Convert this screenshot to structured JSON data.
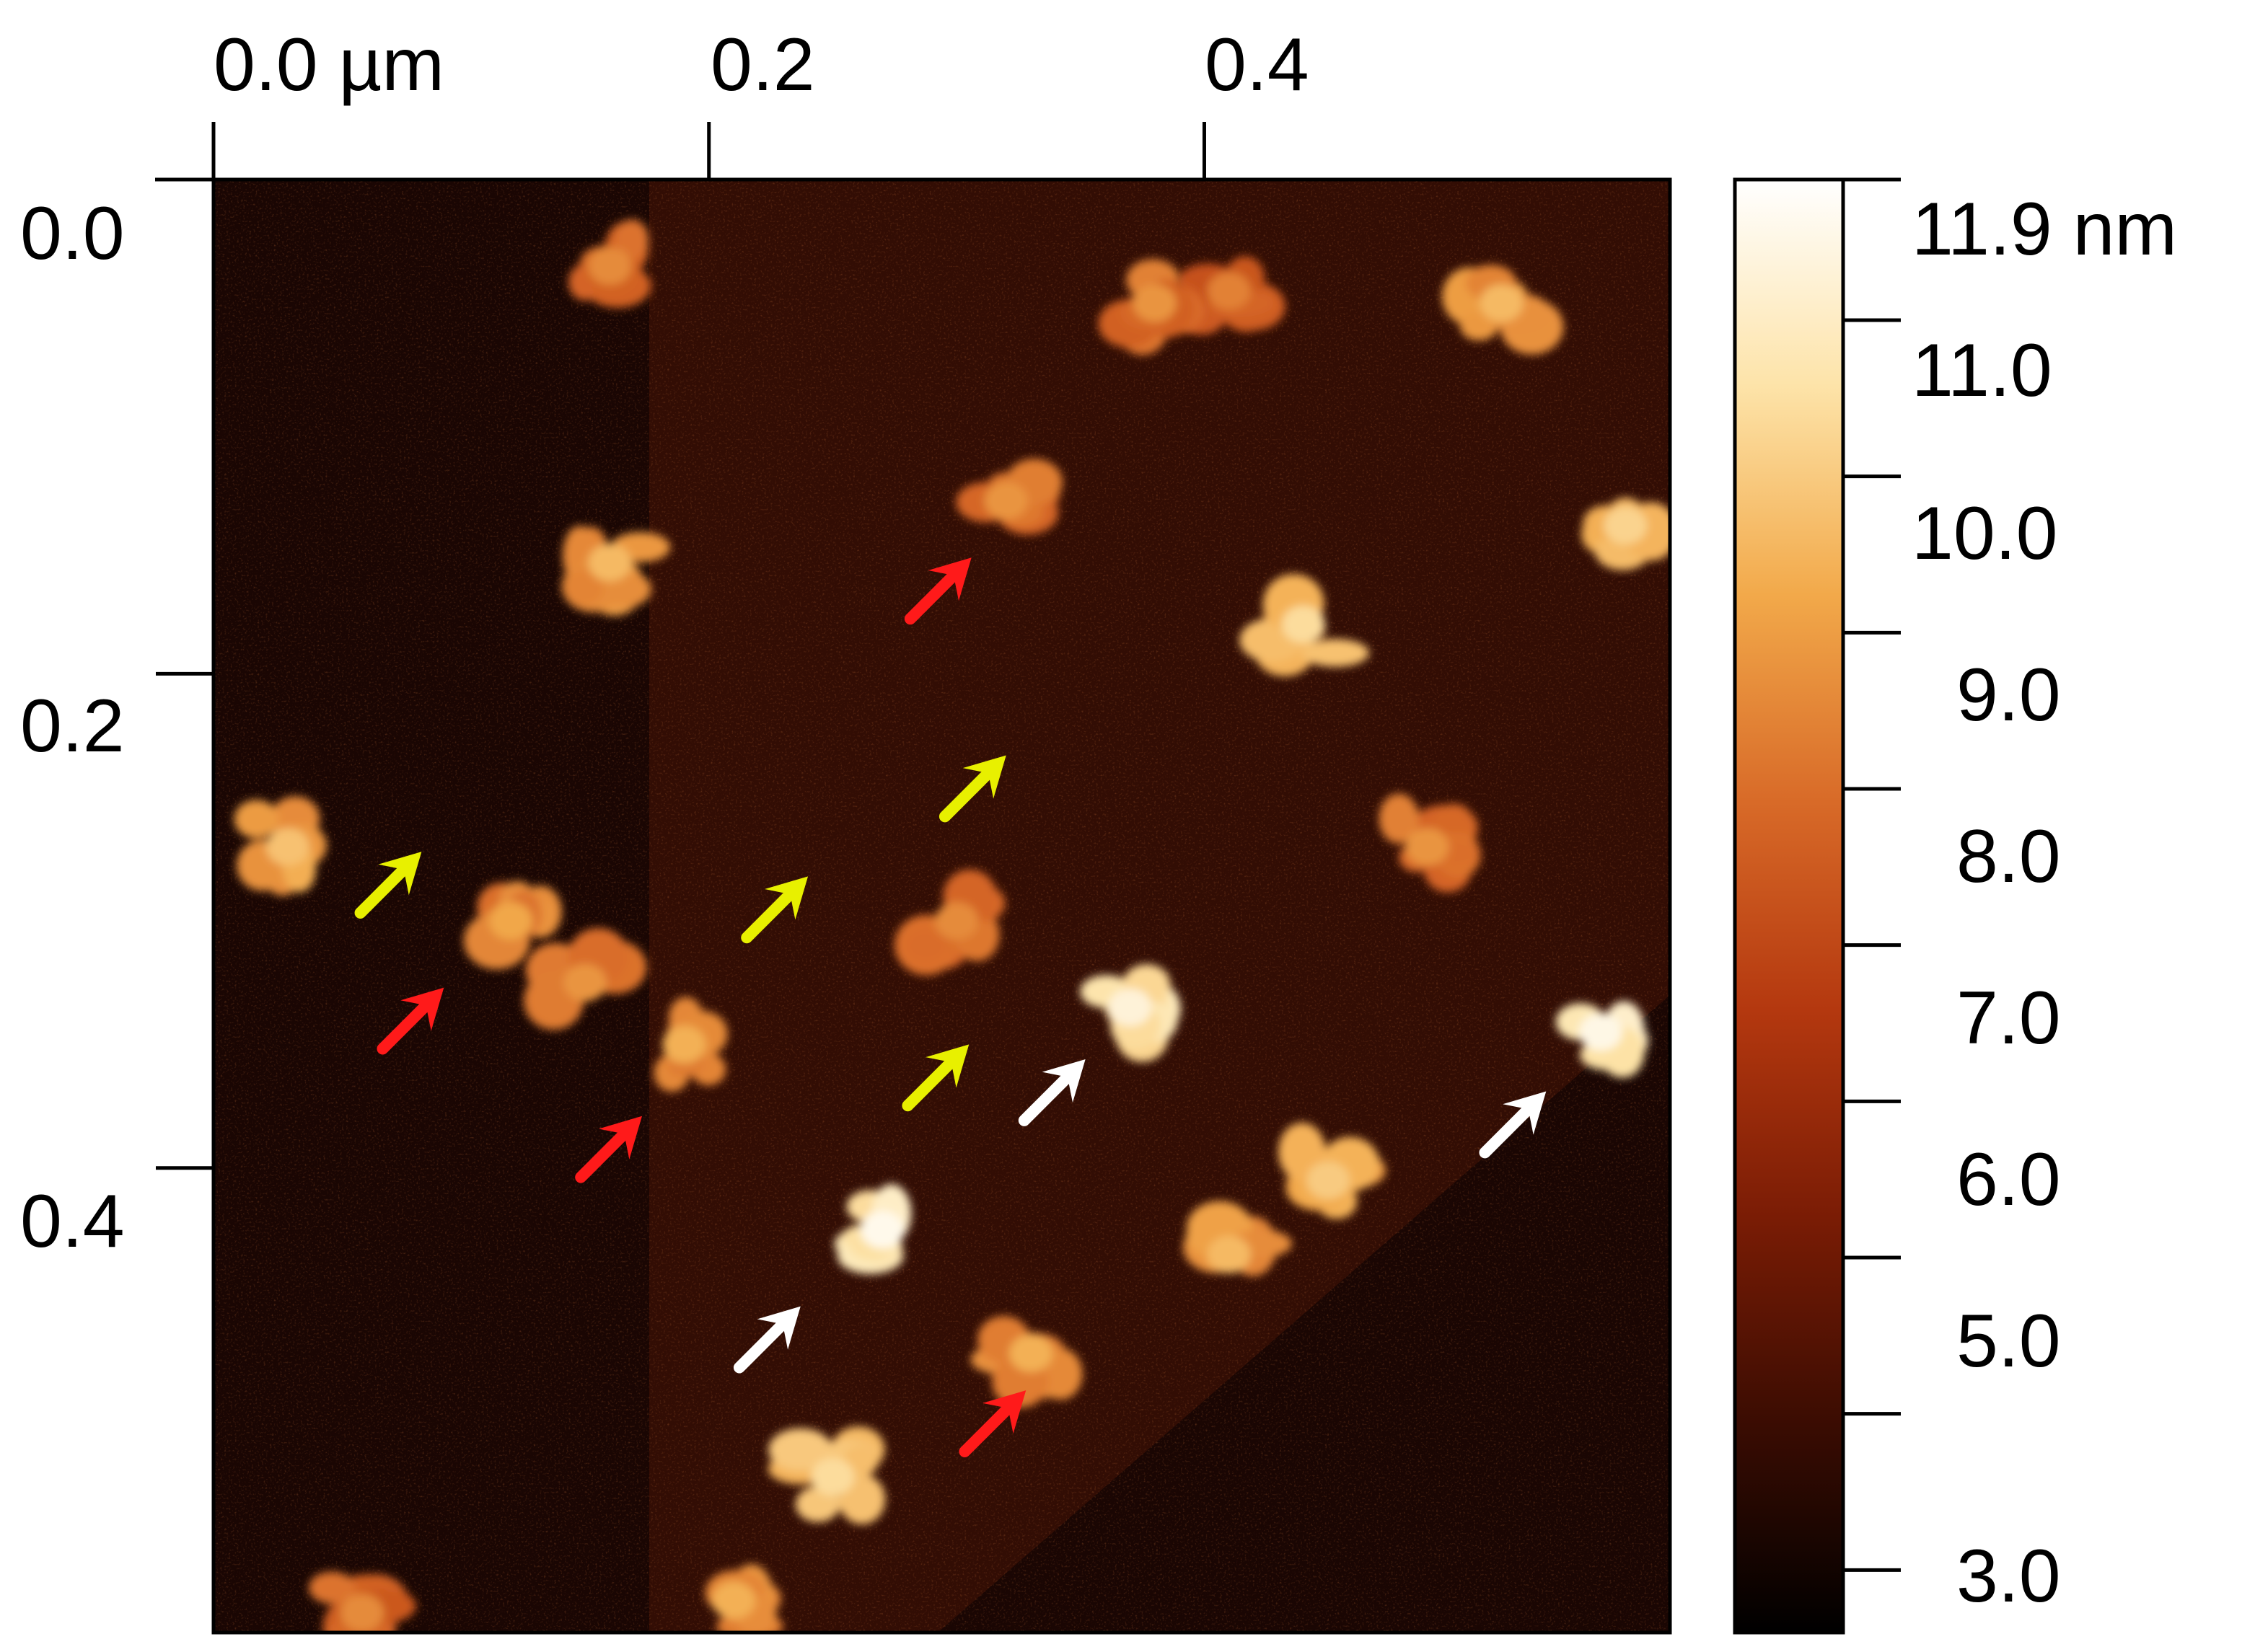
{
  "afm_image": {
    "x_axis": {
      "unit": "µm",
      "ticks": [
        {
          "value": 0.0,
          "label": "0.0 µm"
        },
        {
          "value": 0.2,
          "label": "0.2"
        },
        {
          "value": 0.4,
          "label": "0.4"
        }
      ]
    },
    "y_axis": {
      "ticks": [
        {
          "value": 0.0,
          "label": "0.0"
        },
        {
          "value": 0.2,
          "label": "0.2"
        },
        {
          "value": 0.4,
          "label": "0.4"
        }
      ]
    },
    "colorbar": {
      "unit": "nm",
      "min": 2.6,
      "max": 11.9,
      "colormap": [
        "#000000",
        "#3a0c02",
        "#7a1c05",
        "#b4380f",
        "#d86a28",
        "#f2a94a",
        "#fde3a8",
        "#ffffff"
      ],
      "labels": [
        "11.9 nm",
        "11.0",
        "10.0",
        "9.0",
        "8.0",
        "7.0",
        "6.0",
        "5.0",
        "3.0"
      ]
    },
    "particles": [
      {
        "x": 0.16,
        "y": 0.035,
        "h": 8.6
      },
      {
        "x": 0.41,
        "y": 0.045,
        "h": 8.4
      },
      {
        "x": 0.38,
        "y": 0.05,
        "h": 8.8
      },
      {
        "x": 0.52,
        "y": 0.05,
        "h": 9.6
      },
      {
        "x": 0.32,
        "y": 0.13,
        "h": 8.8
      },
      {
        "x": 0.16,
        "y": 0.155,
        "h": 9.6
      },
      {
        "x": 0.57,
        "y": 0.14,
        "h": 10.2
      },
      {
        "x": 0.44,
        "y": 0.18,
        "h": 10.4
      },
      {
        "x": 0.03,
        "y": 0.27,
        "h": 9.8
      },
      {
        "x": 0.12,
        "y": 0.3,
        "h": 9.2
      },
      {
        "x": 0.15,
        "y": 0.325,
        "h": 8.8
      },
      {
        "x": 0.3,
        "y": 0.3,
        "h": 8.6
      },
      {
        "x": 0.49,
        "y": 0.27,
        "h": 8.8
      },
      {
        "x": 0.19,
        "y": 0.35,
        "h": 9.4
      },
      {
        "x": 0.37,
        "y": 0.335,
        "h": 11.3
      },
      {
        "x": 0.56,
        "y": 0.345,
        "h": 11.5
      },
      {
        "x": 0.45,
        "y": 0.405,
        "h": 10.0
      },
      {
        "x": 0.41,
        "y": 0.435,
        "h": 9.6
      },
      {
        "x": 0.27,
        "y": 0.425,
        "h": 11.6
      },
      {
        "x": 0.33,
        "y": 0.475,
        "h": 9.4
      },
      {
        "x": 0.25,
        "y": 0.525,
        "h": 10.4
      },
      {
        "x": 0.21,
        "y": 0.575,
        "h": 9.4
      },
      {
        "x": 0.06,
        "y": 0.58,
        "h": 8.6
      }
    ],
    "arrows": [
      {
        "color": "red",
        "x": 0.306,
        "y": 0.153
      },
      {
        "color": "red",
        "x": 0.093,
        "y": 0.327
      },
      {
        "color": "red",
        "x": 0.173,
        "y": 0.379
      },
      {
        "color": "red",
        "x": 0.328,
        "y": 0.49
      },
      {
        "color": "yellow",
        "x": 0.084,
        "y": 0.272
      },
      {
        "color": "yellow",
        "x": 0.24,
        "y": 0.282
      },
      {
        "color": "yellow",
        "x": 0.32,
        "y": 0.233
      },
      {
        "color": "yellow",
        "x": 0.305,
        "y": 0.35
      },
      {
        "color": "white",
        "x": 0.352,
        "y": 0.356
      },
      {
        "color": "white",
        "x": 0.538,
        "y": 0.369
      },
      {
        "color": "white",
        "x": 0.237,
        "y": 0.456
      }
    ],
    "arrow_colors": {
      "red": "#ff1a1a",
      "yellow": "#e8f000",
      "white": "#ffffff"
    },
    "image_extent_um": 0.588
  }
}
